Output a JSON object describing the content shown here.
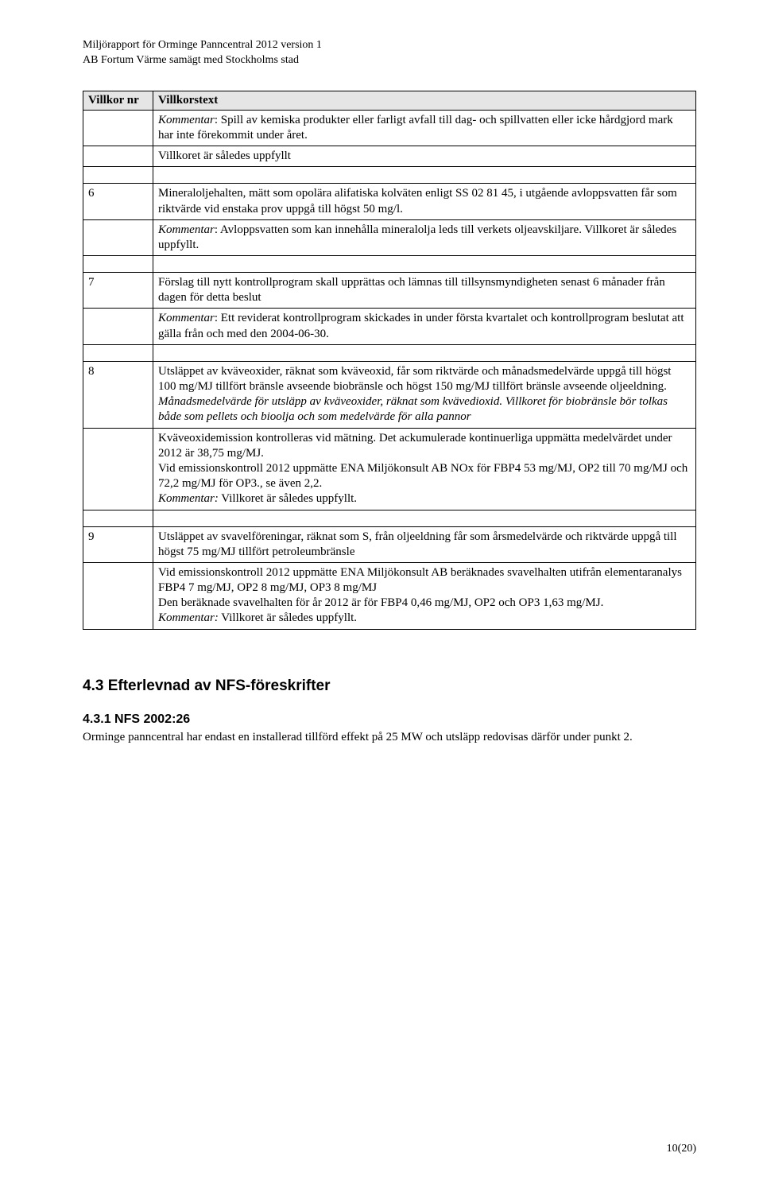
{
  "header": {
    "line1": "Miljörapport för Orminge Panncentral 2012 version 1",
    "line2": "AB Fortum Värme samägt med Stockholms stad"
  },
  "table": {
    "columns": [
      "Villkor nr",
      "Villkorstext"
    ],
    "rows": [
      {
        "num": "",
        "text_italic": "Kommentar",
        "text_rest": ": Spill av kemiska produkter eller farligt avfall till dag- och spillvatten eller icke hårdgjord mark har inte förekommit under året."
      },
      {
        "num": "",
        "text": "Villkoret är således uppfyllt"
      },
      {
        "spacer": true
      },
      {
        "num": "6",
        "text": "Mineraloljehalten, mätt som opolära alifatiska kolväten enligt SS 02 81 45, i utgående avloppsvatten får som riktvärde vid enstaka prov uppgå till högst 50 mg/l."
      },
      {
        "num": "",
        "text_italic": "Kommentar",
        "text_rest": ": Avloppsvatten som kan innehålla mineralolja leds till verkets oljeavskiljare. Villkoret är således uppfyllt."
      },
      {
        "spacer": true
      },
      {
        "num": "7",
        "text": "Förslag till nytt kontrollprogram skall upprättas och lämnas till tillsynsmyndigheten senast 6 månader från dagen för detta beslut"
      },
      {
        "num": "",
        "text_italic": "Kommentar",
        "text_rest": ": Ett reviderat kontrollprogram skickades in under första kvartalet och kontrollprogram beslutat att gälla från och med den 2004-06-30."
      },
      {
        "spacer": true
      },
      {
        "num": "8",
        "mixed": [
          {
            "t": "Utsläppet av kväveoxider, räknat som kväveoxid, får som riktvärde och månadsmedelvärde uppgå till högst 100 mg/MJ tillfört bränsle avseende biobränsle och högst 150 mg/MJ tillfört bränsle avseende oljeeldning.",
            "s": ""
          },
          {
            "br": true
          },
          {
            "t": "Månadsmedelvärde för utsläpp av kväveoxider, räknat som kvävedioxid. Villkoret för biobränsle bör tolkas både som pellets och bioolja och som medelvärde för alla pannor",
            "s": "italic"
          }
        ]
      },
      {
        "num": "",
        "mixed": [
          {
            "t": "Kväveoxidemission kontrolleras vid mätning. Det ackumulerade kontinuerliga uppmätta medelvärdet under 2012 är 38,75 mg/MJ.",
            "s": ""
          },
          {
            "br": true
          },
          {
            "t": "Vid emissionskontroll 2012 uppmätte ENA Miljökonsult AB NOx för FBP4 53 mg/MJ, OP2 till 70 mg/MJ och 72,2 mg/MJ för OP3., se även 2,2.",
            "s": ""
          },
          {
            "br": true
          },
          {
            "t": "Kommentar:",
            "s": "italic"
          },
          {
            "t": " Villkoret är således uppfyllt.",
            "s": ""
          }
        ]
      },
      {
        "spacer": true
      },
      {
        "num": "9",
        "text": "Utsläppet av svavelföreningar, räknat som S, från oljeeldning får som årsmedelvärde och riktvärde uppgå till högst 75 mg/MJ tillfört petroleumbränsle"
      },
      {
        "num": "",
        "mixed": [
          {
            "t": "Vid emissionskontroll 2012 uppmätte ENA Miljökonsult AB beräknades svavelhalten utifrån elementaranalys FBP4 7 mg/MJ, OP2 8 mg/MJ, OP3 8 mg/MJ",
            "s": ""
          },
          {
            "br": true
          },
          {
            "t": "Den beräknade svavelhalten för år 2012 är för FBP4 0,46 mg/MJ, OP2 och OP3 1,63 mg/MJ.",
            "s": ""
          },
          {
            "br": true
          },
          {
            "t": "Kommentar:",
            "s": "italic"
          },
          {
            "t": " Villkoret är således uppfyllt.",
            "s": ""
          }
        ]
      }
    ]
  },
  "sections": {
    "h2": "4.3 Efterlevnad av NFS-föreskrifter",
    "h3": "4.3.1 NFS 2002:26",
    "body": "Orminge panncentral har endast en installerad tillförd effekt på 25 MW och utsläpp redovisas därför under punkt 2."
  },
  "page_number": "10(20)"
}
